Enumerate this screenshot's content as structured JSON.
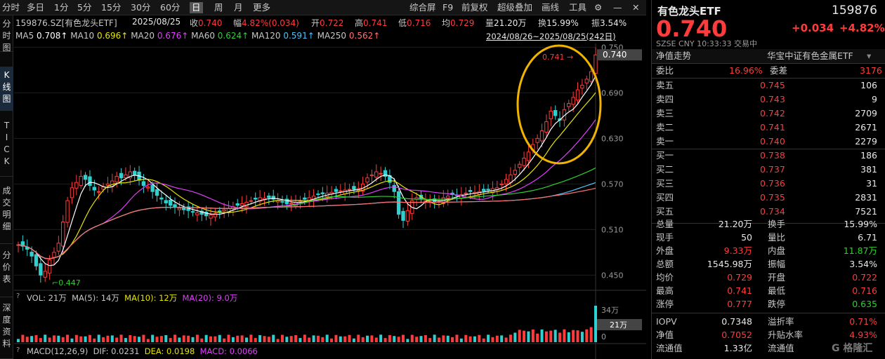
{
  "toolbar": {
    "tabs": [
      "分时",
      "多日",
      "1分",
      "5分",
      "15分",
      "30分",
      "60分",
      "日",
      "周",
      "月",
      "更多"
    ],
    "active": "日",
    "right": [
      "综合屏",
      "F9",
      "前复权",
      "超级叠加",
      "画线",
      "工具"
    ]
  },
  "sidebar": [
    {
      "label": "分时图"
    },
    {
      "label": "K线图"
    },
    {
      "label": "TICK"
    },
    {
      "label": "成交明细"
    },
    {
      "label": "分价表"
    },
    {
      "label": "深度资料"
    }
  ],
  "info": {
    "code_name": "159876.SZ[有色龙头ETF]",
    "date": "2025/08/25",
    "close_label": "收",
    "close": "0.740",
    "chg_label": "幅",
    "chg": "4.82%(0.034)",
    "open_label": "开",
    "open": "0.722",
    "high_label": "高",
    "high": "0.741",
    "low_label": "低",
    "low": "0.716",
    "avg_label": "均",
    "avg": "0.729",
    "vol_label": "量",
    "vol": "21.20万",
    "turn_label": "换",
    "turn": "15.99%",
    "amp_label": "振",
    "amp": "3.54%",
    "range_text": "2024/08/26~2025/08/25(242日)"
  },
  "ma": [
    {
      "label": "MA5",
      "value": "0.708↑",
      "color": "#ffffff"
    },
    {
      "label": "MA10",
      "value": "0.696↑",
      "color": "#e6e600"
    },
    {
      "label": "MA20",
      "value": "0.676↑",
      "color": "#e040fb"
    },
    {
      "label": "MA60",
      "value": "0.624↑",
      "color": "#2fd02f"
    },
    {
      "label": "MA120",
      "value": "0.591↑",
      "color": "#4fc3f7"
    },
    {
      "label": "MA250",
      "value": "0.562↑",
      "color": "#ff7070"
    }
  ],
  "yaxis": [
    "0.750",
    "0.690",
    "0.630",
    "0.570",
    "0.510",
    "0.450"
  ],
  "price_tag": "0.740",
  "annot_high": "0.741",
  "annot_low": "0.447",
  "vol_panel": {
    "label": "VOL: 21万",
    "ma5": "MA(5): 14万",
    "ma10": "MA(10): 12万",
    "ma20": "MA(20): 9.0万",
    "axis_top": "34万",
    "axis_bottom": "0",
    "tag": "21万"
  },
  "macd": {
    "label": "MACD(12,26,9)",
    "dif": "DIF: 0.0231",
    "dea": "DEA: 0.0198",
    "macd": "MACD: 0.0066"
  },
  "chart_data": {
    "type": "candlestick",
    "title": "159876.SZ[有色龙头ETF]",
    "ylim": [
      0.43,
      0.755
    ],
    "series": [
      {
        "name": "close",
        "values": [
          0.49,
          0.488,
          0.484,
          0.475,
          0.462,
          0.45,
          0.455,
          0.47,
          0.48,
          0.492,
          0.52,
          0.548,
          0.565,
          0.572,
          0.58,
          0.576,
          0.568,
          0.562,
          0.56,
          0.566,
          0.57,
          0.574,
          0.58,
          0.578,
          0.582,
          0.586,
          0.582,
          0.575,
          0.568,
          0.566,
          0.56,
          0.555,
          0.55,
          0.545,
          0.542,
          0.54,
          0.538,
          0.536,
          0.535,
          0.533,
          0.532,
          0.53,
          0.528,
          0.529,
          0.531,
          0.533,
          0.536,
          0.538,
          0.54,
          0.542,
          0.544,
          0.546,
          0.548,
          0.55,
          0.552,
          0.551,
          0.552,
          0.55,
          0.548,
          0.546,
          0.544,
          0.545,
          0.546,
          0.548,
          0.55,
          0.552,
          0.554,
          0.556,
          0.557,
          0.558,
          0.559,
          0.56,
          0.561,
          0.562,
          0.563,
          0.563,
          0.564,
          0.57,
          0.578,
          0.582,
          0.586,
          0.584,
          0.58,
          0.572,
          0.56,
          0.53,
          0.522,
          0.535,
          0.548,
          0.552,
          0.55,
          0.548,
          0.547,
          0.546,
          0.548,
          0.552,
          0.554,
          0.556,
          0.555,
          0.556,
          0.558,
          0.56,
          0.559,
          0.56,
          0.561,
          0.562,
          0.564,
          0.565,
          0.57,
          0.576,
          0.582,
          0.588,
          0.596,
          0.604,
          0.612,
          0.622,
          0.63,
          0.64,
          0.652,
          0.666,
          0.66,
          0.654,
          0.668,
          0.676,
          0.684,
          0.694,
          0.7,
          0.708,
          0.718,
          0.74
        ]
      }
    ]
  },
  "rp": {
    "title": "有色龙头ETF",
    "code": "159876",
    "price": "0.740",
    "chg": "+0.034",
    "pct": "+4.82%",
    "sub": "SZSE  CNY  10:33:33  交易中",
    "nav_label": "净值走势",
    "nav_name": "华宝中证有色金属ETF",
    "wei_bi_label": "委比",
    "wei_bi": "16.96%",
    "wei_cha_label": "委差",
    "wei_cha": "3176",
    "asks": [
      {
        "label": "卖五",
        "price": "0.745",
        "vol": "106"
      },
      {
        "label": "卖四",
        "price": "0.743",
        "vol": "9"
      },
      {
        "label": "卖三",
        "price": "0.742",
        "vol": "2709"
      },
      {
        "label": "卖二",
        "price": "0.741",
        "vol": "2671"
      },
      {
        "label": "卖一",
        "price": "0.740",
        "vol": "2279"
      }
    ],
    "bids": [
      {
        "label": "买一",
        "price": "0.738",
        "vol": "186"
      },
      {
        "label": "买二",
        "price": "0.737",
        "vol": "381"
      },
      {
        "label": "买三",
        "price": "0.736",
        "vol": "31"
      },
      {
        "label": "买四",
        "price": "0.735",
        "vol": "2831"
      },
      {
        "label": "买五",
        "price": "0.734",
        "vol": "7521"
      }
    ],
    "stats": [
      {
        "l1": "总量",
        "v1": "21.20万",
        "c1": "white",
        "l2": "换手",
        "v2": "15.99%",
        "c2": "white"
      },
      {
        "l1": "现手",
        "v1": "50",
        "c1": "white",
        "l2": "量比",
        "v2": "6.71",
        "c2": "white"
      },
      {
        "l1": "外盘",
        "v1": "9.33万",
        "c1": "red",
        "l2": "内盘",
        "v2": "11.87万",
        "c2": "green"
      },
      {
        "l1": "总额",
        "v1": "1545.98万",
        "c1": "white",
        "l2": "振幅",
        "v2": "3.54%",
        "c2": "white"
      },
      {
        "l1": "均价",
        "v1": "0.729",
        "c1": "red",
        "l2": "开盘",
        "v2": "0.722",
        "c2": "red"
      },
      {
        "l1": "最高",
        "v1": "0.741",
        "c1": "red",
        "l2": "最低",
        "v2": "0.716",
        "c2": "red"
      },
      {
        "l1": "涨停",
        "v1": "0.777",
        "c1": "red",
        "l2": "跌停",
        "v2": "0.635",
        "c2": "green"
      }
    ],
    "stats2": [
      {
        "l1": "IOPV",
        "v1": "0.7348",
        "c1": "white",
        "l2": "溢折率",
        "v2": "0.71%",
        "c2": "red"
      },
      {
        "l1": "净值",
        "v1": "0.7052",
        "c1": "red",
        "l2": "升贴水率",
        "v2": "4.93%",
        "c2": "red"
      },
      {
        "l1": "流通值",
        "v1": "1.33亿",
        "c1": "white",
        "l2": "流通值",
        "v2": "",
        "c2": "white"
      }
    ]
  },
  "watermark": "格隆汇"
}
